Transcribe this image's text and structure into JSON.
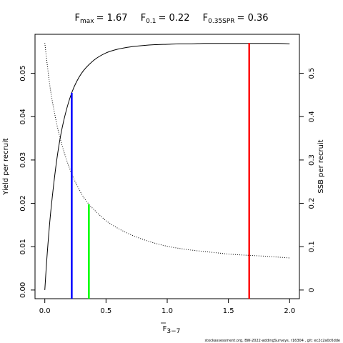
{
  "title": {
    "fmax_label": "F",
    "fmax_sub": "max",
    "fmax_value": "= 1.67",
    "f01_label": "F",
    "f01_sub": "0.1",
    "f01_value": "= 0.22",
    "fspr_label": "F",
    "fspr_sub": "0.35SPR",
    "fspr_value": "= 0.36"
  },
  "xlabel": {
    "main": "F",
    "sub": "3−7"
  },
  "ylabel_left": "Yield per recruit",
  "ylabel_right": "SSB per recruit",
  "footer": "stockassessment.org,  BW-2022-addingSurveys,  r16304 ,  git:  ec2c2a0c6dde",
  "colors": {
    "fmax": "#ff0000",
    "f01": "#0000ff",
    "fspr": "#00ff00",
    "curve": "#000000"
  },
  "chart_data": {
    "type": "line",
    "x_ticks": [
      0,
      0.5,
      1.0,
      1.5,
      2.0
    ],
    "x_tick_labels": [
      "0.0",
      "0.5",
      "1.0",
      "1.5",
      "2.0"
    ],
    "y_left_ticks": [
      0,
      0.01,
      0.02,
      0.03,
      0.04,
      0.05
    ],
    "y_left_tick_labels": [
      "0.00",
      "0.01",
      "0.02",
      "0.03",
      "0.04",
      "0.05"
    ],
    "y_right_ticks": [
      0,
      0.1,
      0.2,
      0.3,
      0.4,
      0.5
    ],
    "y_right_tick_labels": [
      "0",
      "0.1",
      "0.2",
      "0.3",
      "0.4",
      "0.5"
    ],
    "xlim": [
      -0.08,
      2.08
    ],
    "ylim_left": [
      -0.002,
      0.059
    ],
    "ylim_right": [
      -0.02,
      0.59
    ],
    "series": [
      {
        "axis": "left",
        "line": "solid",
        "x": [
          0,
          0.02,
          0.05,
          0.1,
          0.15,
          0.22,
          0.3,
          0.4,
          0.5,
          0.6,
          0.7,
          0.8,
          0.9,
          1.0,
          1.1,
          1.2,
          1.3,
          1.4,
          1.5,
          1.6,
          1.67,
          1.8,
          1.9,
          2.0
        ],
        "y": [
          0.0,
          0.0085,
          0.0185,
          0.0305,
          0.0385,
          0.0455,
          0.05,
          0.053,
          0.0547,
          0.0556,
          0.0561,
          0.0564,
          0.0566,
          0.0567,
          0.0568,
          0.0568,
          0.0569,
          0.0569,
          0.0569,
          0.0569,
          0.0569,
          0.0569,
          0.0569,
          0.0568
        ]
      },
      {
        "axis": "right",
        "line": "dotted",
        "x": [
          0,
          0.02,
          0.05,
          0.1,
          0.15,
          0.22,
          0.3,
          0.36,
          0.4,
          0.5,
          0.6,
          0.7,
          0.8,
          0.9,
          1.0,
          1.1,
          1.2,
          1.3,
          1.4,
          1.5,
          1.6,
          1.67,
          1.8,
          1.9,
          2.0
        ],
        "y": [
          0.57,
          0.52,
          0.455,
          0.38,
          0.325,
          0.268,
          0.222,
          0.198,
          0.186,
          0.16,
          0.142,
          0.128,
          0.117,
          0.108,
          0.101,
          0.096,
          0.092,
          0.089,
          0.086,
          0.083,
          0.081,
          0.08,
          0.078,
          0.076,
          0.074
        ]
      }
    ],
    "reference_lines": [
      {
        "name": "Fmax",
        "x": 1.67,
        "axis": "left",
        "y": 0.057,
        "color_key": "fmax"
      },
      {
        "name": "F0.1",
        "x": 0.22,
        "axis": "left",
        "y": 0.0455,
        "color_key": "f01"
      },
      {
        "name": "F0.35SPR",
        "x": 0.36,
        "axis": "right",
        "y": 0.198,
        "color_key": "fspr"
      }
    ]
  }
}
